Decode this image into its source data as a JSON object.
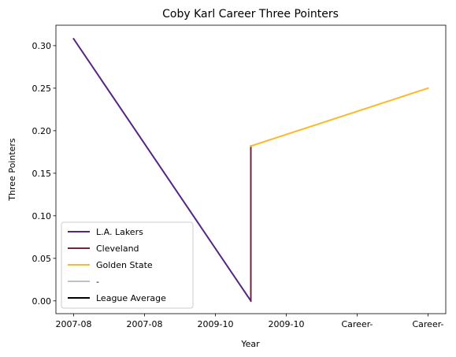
{
  "chart_data": {
    "type": "line",
    "title": "Coby Karl Career Three Pointers",
    "xlabel": "Year",
    "ylabel": "Three Pointers",
    "x_tick_labels": [
      "2007-08",
      "2007-08",
      "2009-10",
      "2009-10",
      "Career-",
      "Career-"
    ],
    "ylim": [
      -0.015,
      0.324
    ],
    "y_ticks": [
      0.0,
      0.05,
      0.1,
      0.15,
      0.2,
      0.25,
      0.3
    ],
    "y_tick_labels": [
      "0.00",
      "0.05",
      "0.10",
      "0.15",
      "0.20",
      "0.25",
      "0.30"
    ],
    "grid": false,
    "legend_position": "lower-left",
    "series": [
      {
        "name": "L.A. Lakers",
        "color": "#552583",
        "points": [
          [
            0,
            0.308
          ],
          [
            2.5,
            0.0
          ]
        ]
      },
      {
        "name": "Cleveland",
        "color": "#6F263D",
        "points": [
          [
            2.5,
            0.0
          ],
          [
            2.5,
            0.182
          ]
        ]
      },
      {
        "name": "Golden State",
        "color": "#FDB927",
        "points": [
          [
            2.5,
            0.182
          ],
          [
            5,
            0.25
          ]
        ]
      },
      {
        "name": "-",
        "color": "#C0C0C0",
        "points": []
      },
      {
        "name": "League Average",
        "color": "#000000",
        "points": []
      }
    ]
  }
}
